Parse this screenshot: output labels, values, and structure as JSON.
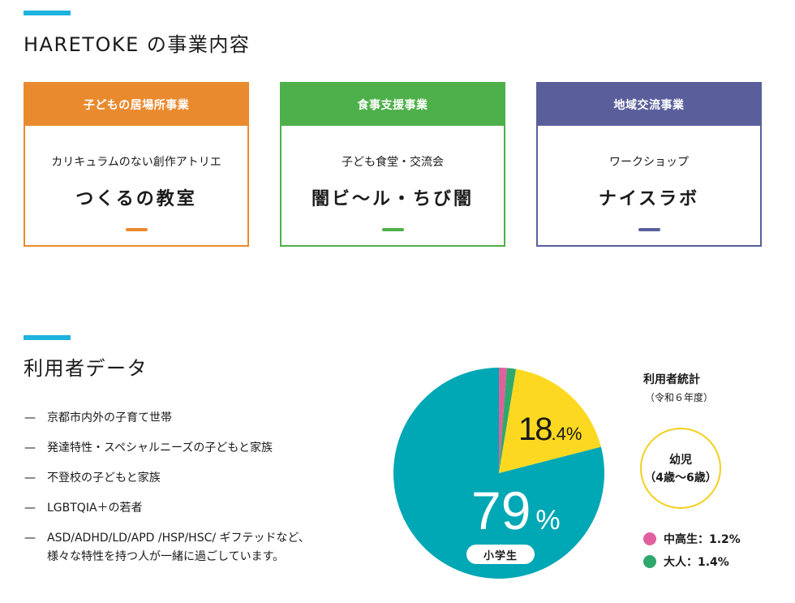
{
  "section1": {
    "title": "HARETOKE の事業内容",
    "accent_color": "#1fb3df"
  },
  "cards": [
    {
      "header": "子どもの居場所事業",
      "subtitle": "カリキュラムのない創作アトリエ",
      "name": "つくるの教室",
      "color": "#ea8a2e"
    },
    {
      "header": "食事支援事業",
      "subtitle": "子ども食堂・交流会",
      "name": "闇ビ〜ル・ちび闇",
      "color": "#4eb04a"
    },
    {
      "header": "地域交流事業",
      "subtitle": "ワークショップ",
      "name": "ナイスラボ",
      "color": "#5a5f9c"
    }
  ],
  "section2": {
    "title": "利用者データ",
    "accent_color": "#1fb3df"
  },
  "targets": [
    {
      "dash": "—",
      "text": "京都市内外の子育て世帯"
    },
    {
      "dash": "—",
      "text": "発達特性・スペシャルニーズの子どもと家族"
    },
    {
      "dash": "—",
      "text": "不登校の子どもと家族"
    },
    {
      "dash": "—",
      "text": "LGBTQIA＋の若者"
    },
    {
      "dash": "—",
      "text": "ASD/ADHD/LD/APD /HSP/HSC/ ギフテッドなど、\n様々な特性を持つ人が一緒に過ごしています。"
    }
  ],
  "stats": {
    "title": "利用者統計",
    "subtitle": "（令和６年度）",
    "infant_label": "幼児",
    "infant_range": "（4歳〜6歳）",
    "yellow_big": "18",
    "yellow_small": ".4%",
    "teal_big": "79",
    "teal_small": "%",
    "teal_pill": "小学生",
    "legend": [
      {
        "label": "中高生：1.2%",
        "color": "#e0609e"
      },
      {
        "label": "大人：1.4%",
        "color": "#2fa86e"
      }
    ]
  },
  "chart_data": {
    "type": "pie",
    "title": "利用者統計（令和６年度）",
    "categories": [
      "中高生",
      "大人",
      "幼児（4歳〜6歳）",
      "小学生"
    ],
    "values": [
      1.2,
      1.4,
      18.4,
      79
    ],
    "colors": [
      "#e0609e",
      "#2fa86e",
      "#fcd920",
      "#00a7b4"
    ],
    "start_angle": "top (12 o'clock), clockwise",
    "labels": [
      "",
      "",
      "18.4%",
      "79%"
    ],
    "legend": [
      {
        "label": "中高生：1.2%",
        "color": "#e0609e"
      },
      {
        "label": "大人：1.4%",
        "color": "#2fa86e"
      }
    ]
  }
}
